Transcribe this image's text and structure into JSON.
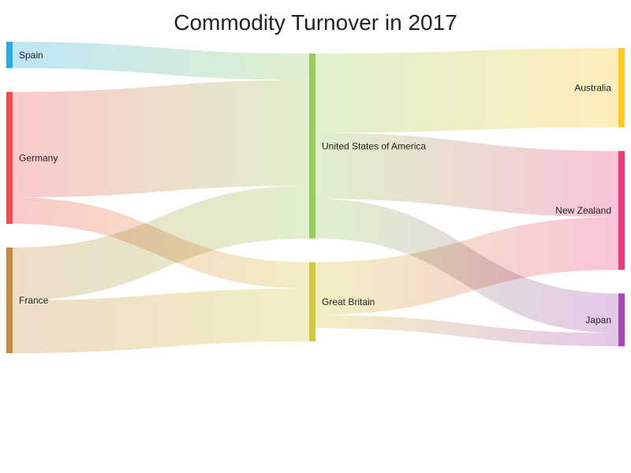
{
  "chart_data": {
    "type": "sankey",
    "title": "Commodity Turnover in 2017",
    "nodes": [
      {
        "id": "spain",
        "label": "Spain",
        "color": "#29abe2",
        "column": 0
      },
      {
        "id": "germany",
        "label": "Germany",
        "color": "#ef4e4e",
        "column": 0
      },
      {
        "id": "france",
        "label": "France",
        "color": "#c38a46",
        "column": 0
      },
      {
        "id": "usa",
        "label": "United States of America",
        "color": "#96cc59",
        "column": 1
      },
      {
        "id": "gb",
        "label": "Great Britain",
        "color": "#d4c93b",
        "column": 1
      },
      {
        "id": "australia",
        "label": "Australia",
        "color": "#ffc724",
        "column": 2
      },
      {
        "id": "nz",
        "label": "New Zealand",
        "color": "#ea3a78",
        "column": 2
      },
      {
        "id": "japan",
        "label": "Japan",
        "color": "#a647b6",
        "column": 2
      }
    ],
    "links": [
      {
        "source": "spain",
        "target": "usa",
        "value": 5
      },
      {
        "source": "germany",
        "target": "usa",
        "value": 20
      },
      {
        "source": "germany",
        "target": "gb",
        "value": 5
      },
      {
        "source": "france",
        "target": "usa",
        "value": 10
      },
      {
        "source": "france",
        "target": "gb",
        "value": 10
      },
      {
        "source": "usa",
        "target": "australia",
        "value": 15
      },
      {
        "source": "usa",
        "target": "nz",
        "value": 12.5
      },
      {
        "source": "usa",
        "target": "japan",
        "value": 7.5
      },
      {
        "source": "gb",
        "target": "nz",
        "value": 10
      },
      {
        "source": "gb",
        "target": "japan",
        "value": 2.5
      }
    ]
  }
}
